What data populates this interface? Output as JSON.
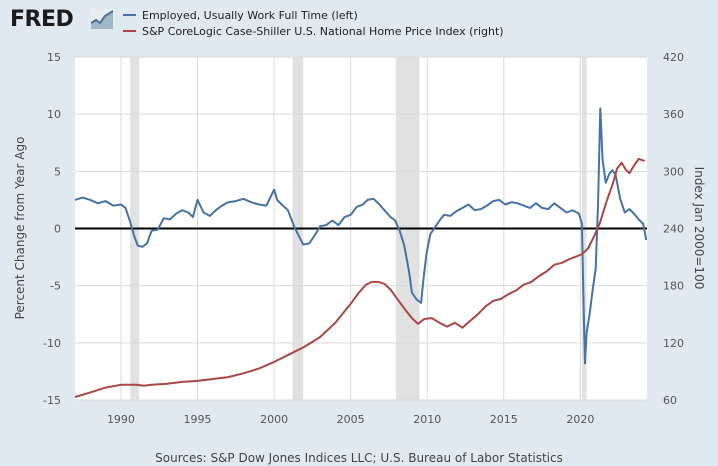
{
  "header": {
    "logo_text": "FRED",
    "logo_icon": "line-chart-icon"
  },
  "colors": {
    "background": "#e1e9f0",
    "plot_bg": "#ffffff",
    "grid": "#d9d9d9",
    "recession": "#e1e1e1",
    "series_left": "#4572a7",
    "series_right": "#aa4643",
    "zero_line": "#000000"
  },
  "source_text": "Sources: S&P Dow Jones Indices LLC; U.S. Bureau of Labor Statistics",
  "chart_data": {
    "type": "line",
    "title": "",
    "xlabel": "",
    "ylabel_left": "Percent Change from Year Ago",
    "ylabel_right": "Index Jan 2000=100",
    "xlim": [
      1987,
      2024.35
    ],
    "ylim_left": [
      -15,
      15
    ],
    "ylim_right": [
      60,
      420
    ],
    "x_ticks": [
      1990,
      1995,
      2000,
      2005,
      2010,
      2015,
      2020
    ],
    "y_ticks_left": [
      -15,
      -10,
      -5,
      0,
      5,
      10,
      15
    ],
    "y_ticks_right": [
      60,
      120,
      180,
      240,
      300,
      360,
      420
    ],
    "grid": true,
    "legend_position": "top-left",
    "recessions": [
      [
        1990.6,
        1991.2
      ],
      [
        2001.2,
        2001.9
      ],
      [
        2007.95,
        2009.5
      ],
      [
        2020.1,
        2020.4
      ]
    ],
    "series": [
      {
        "name": "Employed, Usually Work Full Time (left)",
        "axis": "left",
        "points": [
          [
            1987.0,
            2.5
          ],
          [
            1987.5,
            2.7
          ],
          [
            1988.0,
            2.5
          ],
          [
            1988.5,
            2.2
          ],
          [
            1989.0,
            2.4
          ],
          [
            1989.5,
            2.0
          ],
          [
            1990.0,
            2.1
          ],
          [
            1990.3,
            1.8
          ],
          [
            1990.6,
            0.6
          ],
          [
            1990.85,
            -0.6
          ],
          [
            1991.1,
            -1.5
          ],
          [
            1991.4,
            -1.6
          ],
          [
            1991.7,
            -1.3
          ],
          [
            1992.0,
            -0.2
          ],
          [
            1992.4,
            -0.1
          ],
          [
            1992.8,
            0.9
          ],
          [
            1993.2,
            0.8
          ],
          [
            1993.6,
            1.3
          ],
          [
            1994.0,
            1.6
          ],
          [
            1994.4,
            1.4
          ],
          [
            1994.7,
            1.0
          ],
          [
            1995.0,
            2.5
          ],
          [
            1995.4,
            1.4
          ],
          [
            1995.8,
            1.1
          ],
          [
            1996.2,
            1.6
          ],
          [
            1996.6,
            2.0
          ],
          [
            1997.0,
            2.3
          ],
          [
            1997.5,
            2.4
          ],
          [
            1998.0,
            2.6
          ],
          [
            1998.5,
            2.3
          ],
          [
            1999.0,
            2.1
          ],
          [
            1999.5,
            2.0
          ],
          [
            2000.0,
            3.4
          ],
          [
            2000.2,
            2.5
          ],
          [
            2000.5,
            2.1
          ],
          [
            2000.9,
            1.6
          ],
          [
            2001.3,
            0.2
          ],
          [
            2001.6,
            -0.6
          ],
          [
            2001.9,
            -1.4
          ],
          [
            2002.3,
            -1.3
          ],
          [
            2002.7,
            -0.5
          ],
          [
            2003.0,
            0.2
          ],
          [
            2003.4,
            0.3
          ],
          [
            2003.8,
            0.7
          ],
          [
            2004.2,
            0.3
          ],
          [
            2004.6,
            1.0
          ],
          [
            2005.0,
            1.2
          ],
          [
            2005.4,
            1.9
          ],
          [
            2005.8,
            2.1
          ],
          [
            2006.1,
            2.5
          ],
          [
            2006.5,
            2.6
          ],
          [
            2006.8,
            2.2
          ],
          [
            2007.2,
            1.6
          ],
          [
            2007.6,
            1.0
          ],
          [
            2007.9,
            0.7
          ],
          [
            2008.2,
            -0.2
          ],
          [
            2008.5,
            -1.5
          ],
          [
            2008.8,
            -3.7
          ],
          [
            2009.0,
            -5.6
          ],
          [
            2009.3,
            -6.2
          ],
          [
            2009.6,
            -6.5
          ],
          [
            2009.75,
            -4.5
          ],
          [
            2009.95,
            -2.2
          ],
          [
            2010.2,
            -0.5
          ],
          [
            2010.5,
            0.1
          ],
          [
            2010.8,
            0.7
          ],
          [
            2011.1,
            1.2
          ],
          [
            2011.5,
            1.1
          ],
          [
            2011.9,
            1.5
          ],
          [
            2012.3,
            1.8
          ],
          [
            2012.7,
            2.1
          ],
          [
            2013.1,
            1.6
          ],
          [
            2013.5,
            1.7
          ],
          [
            2013.9,
            2.0
          ],
          [
            2014.3,
            2.4
          ],
          [
            2014.7,
            2.5
          ],
          [
            2015.1,
            2.1
          ],
          [
            2015.5,
            2.3
          ],
          [
            2015.9,
            2.2
          ],
          [
            2016.3,
            2.0
          ],
          [
            2016.7,
            1.8
          ],
          [
            2017.1,
            2.2
          ],
          [
            2017.5,
            1.8
          ],
          [
            2017.9,
            1.7
          ],
          [
            2018.3,
            2.2
          ],
          [
            2018.7,
            1.8
          ],
          [
            2019.1,
            1.4
          ],
          [
            2019.5,
            1.6
          ],
          [
            2019.9,
            1.3
          ],
          [
            2020.1,
            0.4
          ],
          [
            2020.2,
            -6.0
          ],
          [
            2020.3,
            -11.8
          ],
          [
            2020.4,
            -9.2
          ],
          [
            2020.6,
            -7.5
          ],
          [
            2020.8,
            -5.4
          ],
          [
            2021.0,
            -3.5
          ],
          [
            2021.15,
            2.0
          ],
          [
            2021.3,
            10.5
          ],
          [
            2021.45,
            6.0
          ],
          [
            2021.65,
            4.0
          ],
          [
            2021.9,
            4.8
          ],
          [
            2022.1,
            5.1
          ],
          [
            2022.3,
            4.7
          ],
          [
            2022.6,
            2.6
          ],
          [
            2022.9,
            1.4
          ],
          [
            2023.2,
            1.7
          ],
          [
            2023.5,
            1.3
          ],
          [
            2023.8,
            0.8
          ],
          [
            2024.1,
            0.4
          ],
          [
            2024.3,
            -1.0
          ]
        ]
      },
      {
        "name": "S&P CoreLogic Case-Shiller U.S. National Home Price Index (right)",
        "axis": "right",
        "points": [
          [
            1987.0,
            63
          ],
          [
            1988.0,
            68
          ],
          [
            1989.0,
            73
          ],
          [
            1990.0,
            76
          ],
          [
            1991.0,
            76
          ],
          [
            1991.5,
            75
          ],
          [
            1992.0,
            76
          ],
          [
            1993.0,
            77
          ],
          [
            1994.0,
            79
          ],
          [
            1995.0,
            80
          ],
          [
            1996.0,
            82
          ],
          [
            1997.0,
            84
          ],
          [
            1998.0,
            88
          ],
          [
            1999.0,
            93
          ],
          [
            2000.0,
            100
          ],
          [
            2001.0,
            108
          ],
          [
            2002.0,
            116
          ],
          [
            2003.0,
            126
          ],
          [
            2004.0,
            141
          ],
          [
            2005.0,
            161
          ],
          [
            2005.5,
            172
          ],
          [
            2006.0,
            181
          ],
          [
            2006.4,
            184
          ],
          [
            2006.8,
            184
          ],
          [
            2007.2,
            182
          ],
          [
            2007.6,
            176
          ],
          [
            2008.0,
            167
          ],
          [
            2008.5,
            156
          ],
          [
            2009.0,
            146
          ],
          [
            2009.4,
            140
          ],
          [
            2009.8,
            145
          ],
          [
            2010.3,
            146
          ],
          [
            2010.8,
            141
          ],
          [
            2011.3,
            137
          ],
          [
            2011.8,
            141
          ],
          [
            2012.3,
            136
          ],
          [
            2012.8,
            143
          ],
          [
            2013.3,
            150
          ],
          [
            2013.8,
            158
          ],
          [
            2014.3,
            164
          ],
          [
            2014.8,
            166
          ],
          [
            2015.3,
            171
          ],
          [
            2015.8,
            175
          ],
          [
            2016.3,
            181
          ],
          [
            2016.8,
            184
          ],
          [
            2017.3,
            190
          ],
          [
            2017.8,
            195
          ],
          [
            2018.3,
            202
          ],
          [
            2018.8,
            204
          ],
          [
            2019.3,
            208
          ],
          [
            2019.8,
            211
          ],
          [
            2020.1,
            213
          ],
          [
            2020.5,
            219
          ],
          [
            2020.9,
            232
          ],
          [
            2021.3,
            247
          ],
          [
            2021.7,
            268
          ],
          [
            2022.1,
            286
          ],
          [
            2022.4,
            303
          ],
          [
            2022.7,
            309
          ],
          [
            2022.95,
            302
          ],
          [
            2023.2,
            298
          ],
          [
            2023.5,
            306
          ],
          [
            2023.8,
            313
          ],
          [
            2024.0,
            312
          ],
          [
            2024.2,
            311
          ]
        ]
      }
    ]
  }
}
